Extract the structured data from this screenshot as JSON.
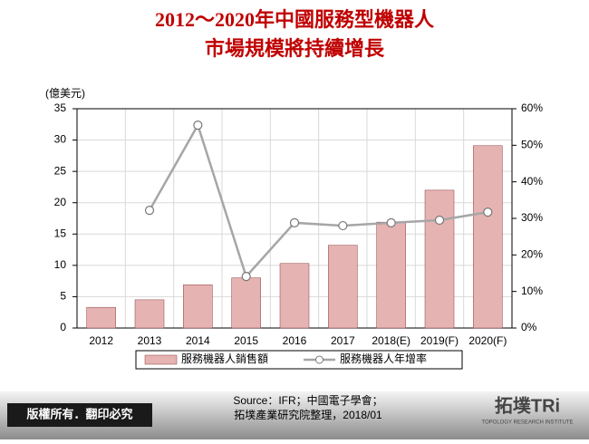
{
  "chart_data": {
    "type": "bar-line",
    "title": [
      "2012～2020年中國服務型機器人",
      "市場規模將持續增長"
    ],
    "y_label": "(億美元)",
    "categories": [
      "2012",
      "2013",
      "2014",
      "2015",
      "2016",
      "2017",
      "2018(E)",
      "2019(F)",
      "2020(F)"
    ],
    "series": [
      {
        "name": "服務機器人銷售額",
        "type": "bar",
        "color": "#e6b3b3",
        "values": [
          3.3,
          4.5,
          6.9,
          8.0,
          10.3,
          13.2,
          16.9,
          22.0,
          29.1
        ]
      },
      {
        "name": "服務機器人年增率",
        "type": "line",
        "axis": "y2",
        "color": "#a6a6a6",
        "values": [
          null,
          32.2,
          55.5,
          14.1,
          28.8,
          28.0,
          28.8,
          29.5,
          31.7
        ]
      }
    ],
    "ylim": [
      0,
      35
    ],
    "yticks": [
      0,
      5,
      10,
      15,
      20,
      25,
      30,
      35
    ],
    "y2lim": [
      0,
      60
    ],
    "y2ticks": [
      {
        "value": 0,
        "label": "0%"
      },
      {
        "value": 10,
        "label": "10%"
      },
      {
        "value": 20,
        "label": "20%"
      },
      {
        "value": 30,
        "label": "30%"
      },
      {
        "value": 40,
        "label": "40%"
      },
      {
        "value": 50,
        "label": "50%"
      },
      {
        "value": 60,
        "label": "60%"
      }
    ],
    "grid": true,
    "legend": "bottom"
  },
  "footer": {
    "copyright": "版權所有．翻印必究",
    "source": [
      "Source：IFR；中國電子學會；",
      "拓墣產業研究院整理，2018/01"
    ],
    "logo": "拓墣TRi",
    "logo_subtitle": "TOPOLOGY RESEARCH INSTITUTE"
  }
}
